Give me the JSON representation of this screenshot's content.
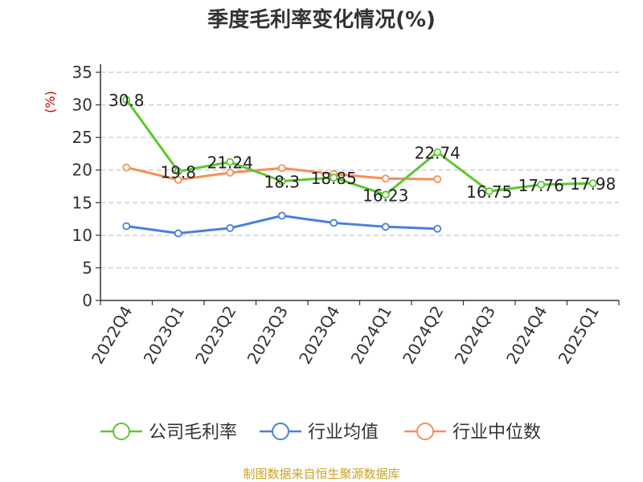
{
  "chart_data": {
    "type": "line",
    "title": "季度毛利率变化情况(%)",
    "ylabel": "(%)",
    "xlabel": "",
    "ylim": [
      0,
      35
    ],
    "yticks": [
      0,
      5,
      10,
      15,
      20,
      25,
      30,
      35
    ],
    "grid": true,
    "legend_position": "bottom",
    "categories": [
      "2022Q4",
      "2023Q1",
      "2023Q2",
      "2023Q3",
      "2023Q4",
      "2024Q1",
      "2024Q2",
      "2024Q3",
      "2024Q4",
      "2025Q1"
    ],
    "series": [
      {
        "name": "公司毛利率",
        "color": "#5cc72f",
        "values": [
          30.8,
          19.8,
          21.24,
          18.3,
          18.85,
          16.23,
          22.74,
          16.75,
          17.76,
          17.98
        ],
        "labels": [
          "30.8",
          "19.8",
          "21.24",
          "18.3",
          "18.85",
          "16.23",
          "22.74",
          "16.75",
          "17.76",
          "17.98"
        ]
      },
      {
        "name": "行业均值",
        "color": "#4a7fdc",
        "values": [
          11.4,
          10.3,
          11.1,
          13.0,
          11.9,
          11.3,
          11.0,
          null,
          null,
          null
        ]
      },
      {
        "name": "行业中位数",
        "color": "#f4905a",
        "values": [
          20.4,
          18.5,
          19.6,
          20.3,
          19.4,
          18.7,
          18.6,
          null,
          null,
          null
        ]
      }
    ]
  },
  "source_text": "制图数据来自恒生聚源数据库"
}
